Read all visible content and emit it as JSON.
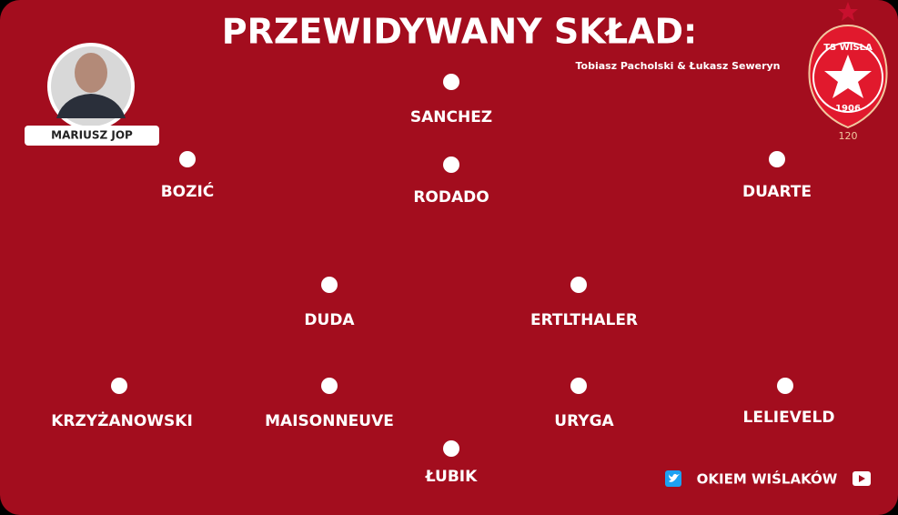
{
  "header": {
    "title": "PRZEWIDYWANY SKŁAD:",
    "authors": "Tobiasz Pacholski & Łukasz Seweryn"
  },
  "coach": {
    "name": "MARIUSZ JOP"
  },
  "crest": {
    "name": "TS WISŁA",
    "year": "1906",
    "number": "120"
  },
  "players": [
    "SANCHEZ",
    "BOZIĆ",
    "RODADO",
    "DUARTE",
    "DUDA",
    "ERTLTHALER",
    "KRZYŻANOWSKI",
    "MAISONNEUVE",
    "URYGA",
    "LELIEVELD",
    "ŁUBIK"
  ],
  "footer": {
    "brand": "OKIEM WIŚLAKÓW"
  }
}
